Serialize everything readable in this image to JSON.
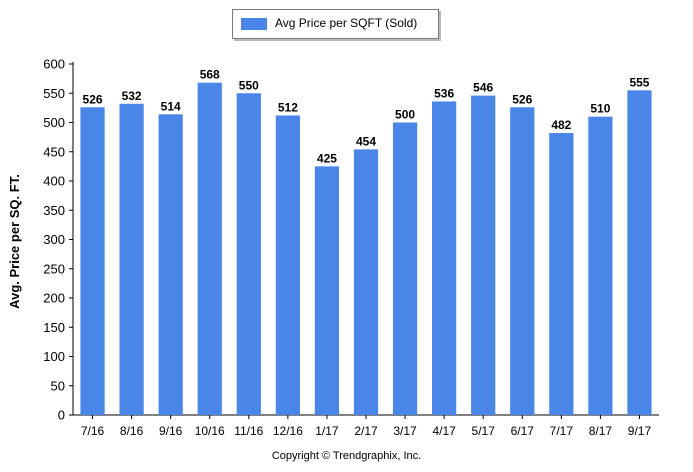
{
  "legend": {
    "label": "Avg Price per SQFT (Sold)"
  },
  "footer": {
    "copyright": "Copyright © Trendgraphix, Inc."
  },
  "chart_data": {
    "type": "bar",
    "categories": [
      "7/16",
      "8/16",
      "9/16",
      "10/16",
      "11/16",
      "12/16",
      "1/17",
      "2/17",
      "3/17",
      "4/17",
      "5/17",
      "6/17",
      "7/17",
      "8/17",
      "9/17"
    ],
    "series": [
      {
        "name": "Avg Price per SQFT (Sold)",
        "values": [
          526,
          532,
          514,
          568,
          550,
          512,
          425,
          454,
          500,
          536,
          546,
          526,
          482,
          510,
          555
        ]
      }
    ],
    "ylabel": "Avg. Price per SQ. FT.",
    "xlabel": "",
    "ylim": [
      0,
      600
    ],
    "yticks": [
      0,
      50,
      100,
      150,
      200,
      250,
      300,
      350,
      400,
      450,
      500,
      550,
      600
    ],
    "grid": false,
    "legend_position": "top-center",
    "bar_color": "#4A86E8",
    "show_data_labels": true
  }
}
